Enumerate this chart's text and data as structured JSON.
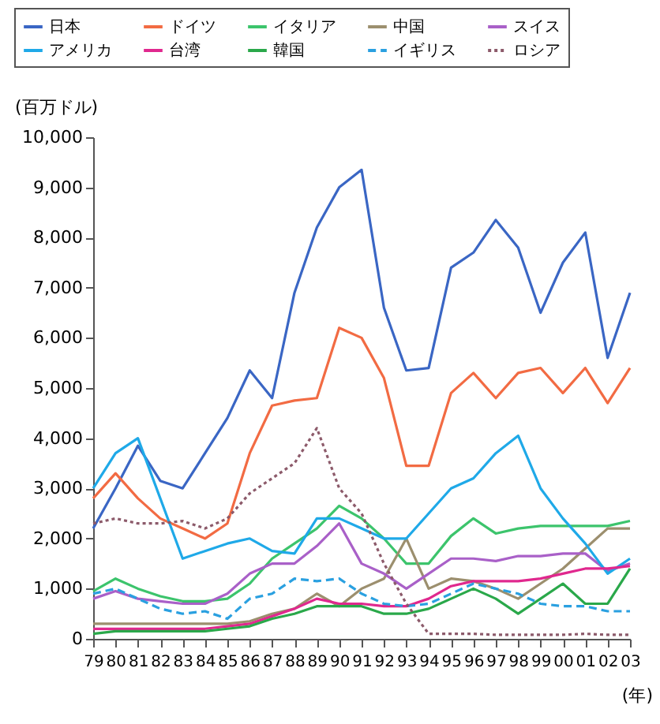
{
  "chart_data": {
    "type": "line",
    "ylabel": "(百万ドル)",
    "xlabel": "(年)",
    "categories": [
      "79",
      "80",
      "81",
      "82",
      "83",
      "84",
      "85",
      "86",
      "87",
      "88",
      "89",
      "90",
      "91",
      "92",
      "93",
      "94",
      "95",
      "96",
      "97",
      "98",
      "99",
      "00",
      "01",
      "02",
      "03"
    ],
    "ylim": [
      0,
      10000
    ],
    "yticks": [
      {
        "value": 0,
        "label": "0"
      },
      {
        "value": 1000,
        "label": "1,000"
      },
      {
        "value": 2000,
        "label": "2,000"
      },
      {
        "value": 3000,
        "label": "3,000"
      },
      {
        "value": 4000,
        "label": "4,000"
      },
      {
        "value": 5000,
        "label": "5,000"
      },
      {
        "value": 6000,
        "label": "6,000"
      },
      {
        "value": 7000,
        "label": "7,000"
      },
      {
        "value": 8000,
        "label": "8,000"
      },
      {
        "value": 9000,
        "label": "9,000"
      },
      {
        "value": 10000,
        "label": "10,000"
      }
    ],
    "grid": false,
    "legend": "top",
    "marker": "none",
    "series": [
      {
        "name": "日本",
        "color": "#3a66c4",
        "line_style": "solid",
        "values": [
          2200,
          3000,
          3850,
          3150,
          3000,
          3700,
          4400,
          5350,
          4800,
          6900,
          8200,
          9000,
          9350,
          6600,
          5350,
          5400,
          7400,
          7700,
          8350,
          7800,
          6500,
          7500,
          8100,
          5600,
          6900
        ]
      },
      {
        "name": "ドイツ",
        "color": "#f26b43",
        "line_style": "solid",
        "values": [
          2800,
          3300,
          2800,
          2400,
          2200,
          2000,
          2300,
          3700,
          4650,
          4750,
          4800,
          6200,
          6000,
          5200,
          3450,
          3450,
          4900,
          5300,
          4800,
          5300,
          5400,
          4900,
          5400,
          4700,
          5400
        ]
      },
      {
        "name": "イタリア",
        "color": "#3cc46c",
        "line_style": "solid",
        "values": [
          950,
          1200,
          1000,
          850,
          750,
          750,
          800,
          1100,
          1600,
          1900,
          2200,
          2650,
          2400,
          2000,
          1500,
          1500,
          2050,
          2400,
          2100,
          2200,
          2250,
          2250,
          2250,
          2250,
          2350
        ]
      },
      {
        "name": "中国",
        "color": "#9c8f6e",
        "line_style": "solid",
        "values": [
          300,
          300,
          300,
          300,
          300,
          300,
          300,
          350,
          500,
          600,
          900,
          650,
          1000,
          1200,
          2000,
          1000,
          1200,
          1150,
          1000,
          800,
          1100,
          1400,
          1800,
          2200,
          2200
        ]
      },
      {
        "name": "スイス",
        "color": "#a960c8",
        "line_style": "solid",
        "values": [
          800,
          950,
          800,
          750,
          700,
          700,
          900,
          1300,
          1500,
          1500,
          1850,
          2300,
          1500,
          1300,
          1000,
          1300,
          1600,
          1600,
          1550,
          1650,
          1650,
          1700,
          1700,
          1350,
          1500
        ]
      },
      {
        "name": "アメリカ",
        "color": "#1fa9e8",
        "line_style": "solid",
        "values": [
          3000,
          3700,
          4000,
          2800,
          1600,
          1750,
          1900,
          2000,
          1750,
          1700,
          2400,
          2400,
          2200,
          2000,
          2000,
          2500,
          3000,
          3200,
          3700,
          4050,
          3000,
          2400,
          1900,
          1300,
          1600
        ]
      },
      {
        "name": "台湾",
        "color": "#e0288e",
        "line_style": "solid",
        "values": [
          200,
          200,
          200,
          200,
          200,
          200,
          250,
          300,
          450,
          600,
          800,
          700,
          700,
          650,
          650,
          800,
          1050,
          1150,
          1150,
          1150,
          1200,
          1300,
          1400,
          1400,
          1450
        ]
      },
      {
        "name": "韓国",
        "color": "#2aa84a",
        "line_style": "solid",
        "values": [
          100,
          150,
          150,
          150,
          150,
          150,
          200,
          250,
          400,
          500,
          650,
          650,
          650,
          500,
          500,
          600,
          800,
          1000,
          800,
          500,
          800,
          1100,
          700,
          700,
          1400
        ]
      },
      {
        "name": "イギリス",
        "color": "#2aa0e0",
        "line_style": "dashed",
        "values": [
          900,
          1000,
          800,
          600,
          500,
          550,
          400,
          800,
          900,
          1200,
          1150,
          1200,
          900,
          700,
          650,
          700,
          900,
          1100,
          1000,
          900,
          700,
          650,
          650,
          550,
          550
        ]
      },
      {
        "name": "ロシア",
        "color": "#8c5a6a",
        "line_style": "dotted",
        "values": [
          2300,
          2400,
          2300,
          2300,
          2350,
          2200,
          2400,
          2900,
          3200,
          3500,
          4200,
          3000,
          2500,
          1500,
          700,
          100,
          100,
          100,
          80,
          80,
          80,
          80,
          100,
          80,
          80
        ]
      }
    ]
  }
}
